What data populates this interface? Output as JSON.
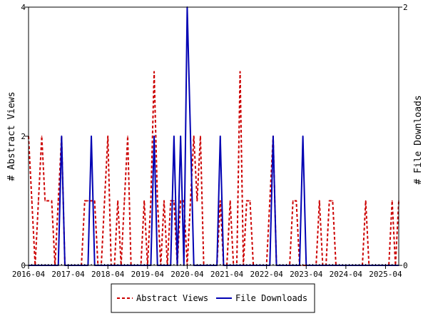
{
  "chart_data": {
    "type": "line",
    "title": "",
    "ylabel_left": "# Abstract Views",
    "ylabel_right": "# File Downloads",
    "x_tick_labels": [
      "2016-04",
      "2017-04",
      "2018-04",
      "2019-04",
      "2020-04",
      "2021-04",
      "2022-04",
      "2023-04",
      "2024-04",
      "2025-04"
    ],
    "x_ticks": [
      "2016-04",
      "2017-04",
      "2018-04",
      "2019-04",
      "2020-04",
      "2021-04",
      "2022-04",
      "2023-04",
      "2024-04",
      "2025-04"
    ],
    "x_range": [
      "2016-04",
      "2025-08"
    ],
    "y_left": {
      "range": [
        0,
        4
      ],
      "ticks": [
        0,
        2,
        4
      ],
      "tick_labels": [
        "0",
        "2",
        "4"
      ]
    },
    "y_right": {
      "range": [
        0,
        2
      ],
      "ticks": [
        0,
        2
      ],
      "tick_labels": [
        "0",
        "2"
      ]
    },
    "legend_position": "bottom",
    "series": [
      {
        "name": "Abstract Views",
        "axis": "left",
        "color": "#cc0000",
        "style": "dashed",
        "points": [
          [
            "2016-04",
            2
          ],
          [
            "2016-05",
            1
          ],
          [
            "2016-06",
            0
          ],
          [
            "2016-07",
            1
          ],
          [
            "2016-08",
            2
          ],
          [
            "2016-09",
            1
          ],
          [
            "2016-10",
            1
          ],
          [
            "2016-11",
            1
          ],
          [
            "2016-12",
            0
          ],
          [
            "2017-01",
            1
          ],
          [
            "2017-02",
            2
          ],
          [
            "2017-03",
            0
          ],
          [
            "2017-04",
            0
          ],
          [
            "2017-05",
            0
          ],
          [
            "2017-06",
            0
          ],
          [
            "2017-07",
            0
          ],
          [
            "2017-08",
            0
          ],
          [
            "2017-09",
            1
          ],
          [
            "2017-10",
            1
          ],
          [
            "2017-11",
            1
          ],
          [
            "2017-12",
            1
          ],
          [
            "2018-01",
            0
          ],
          [
            "2018-02",
            0
          ],
          [
            "2018-03",
            1
          ],
          [
            "2018-04",
            2
          ],
          [
            "2018-05",
            0
          ],
          [
            "2018-06",
            0
          ],
          [
            "2018-07",
            1
          ],
          [
            "2018-08",
            0
          ],
          [
            "2018-09",
            1
          ],
          [
            "2018-10",
            2
          ],
          [
            "2018-11",
            0
          ],
          [
            "2018-12",
            0
          ],
          [
            "2019-01",
            0
          ],
          [
            "2019-02",
            0
          ],
          [
            "2019-03",
            1
          ],
          [
            "2019-04",
            0
          ],
          [
            "2019-05",
            1
          ],
          [
            "2019-06",
            3
          ],
          [
            "2019-07",
            1
          ],
          [
            "2019-08",
            0
          ],
          [
            "2019-09",
            1
          ],
          [
            "2019-10",
            0
          ],
          [
            "2019-11",
            1
          ],
          [
            "2019-12",
            1
          ],
          [
            "2020-01",
            0
          ],
          [
            "2020-02",
            1
          ],
          [
            "2020-03",
            1
          ],
          [
            "2020-04",
            0
          ],
          [
            "2020-05",
            1
          ],
          [
            "2020-06",
            2
          ],
          [
            "2020-07",
            1
          ],
          [
            "2020-08",
            2
          ],
          [
            "2020-09",
            0
          ],
          [
            "2020-10",
            0
          ],
          [
            "2020-11",
            0
          ],
          [
            "2020-12",
            0
          ],
          [
            "2021-01",
            0
          ],
          [
            "2021-02",
            1
          ],
          [
            "2021-03",
            0
          ],
          [
            "2021-04",
            0
          ],
          [
            "2021-05",
            1
          ],
          [
            "2021-06",
            0
          ],
          [
            "2021-07",
            0
          ],
          [
            "2021-08",
            3
          ],
          [
            "2021-09",
            0
          ],
          [
            "2021-10",
            1
          ],
          [
            "2021-11",
            1
          ],
          [
            "2021-12",
            0
          ],
          [
            "2022-01",
            0
          ],
          [
            "2022-02",
            0
          ],
          [
            "2022-03",
            0
          ],
          [
            "2022-04",
            0
          ],
          [
            "2022-05",
            1
          ],
          [
            "2022-06",
            2
          ],
          [
            "2022-07",
            0
          ],
          [
            "2022-08",
            0
          ],
          [
            "2022-09",
            0
          ],
          [
            "2022-10",
            0
          ],
          [
            "2022-11",
            0
          ],
          [
            "2022-12",
            1
          ],
          [
            "2023-01",
            1
          ],
          [
            "2023-02",
            0
          ],
          [
            "2023-03",
            0
          ],
          [
            "2023-04",
            0
          ],
          [
            "2023-05",
            0
          ],
          [
            "2023-06",
            0
          ],
          [
            "2023-07",
            0
          ],
          [
            "2023-08",
            1
          ],
          [
            "2023-09",
            0
          ],
          [
            "2023-10",
            0
          ],
          [
            "2023-11",
            1
          ],
          [
            "2023-12",
            1
          ],
          [
            "2024-01",
            0
          ],
          [
            "2024-02",
            0
          ],
          [
            "2024-03",
            0
          ],
          [
            "2024-04",
            0
          ],
          [
            "2024-05",
            0
          ],
          [
            "2024-06",
            0
          ],
          [
            "2024-07",
            0
          ],
          [
            "2024-08",
            0
          ],
          [
            "2024-09",
            0
          ],
          [
            "2024-10",
            1
          ],
          [
            "2024-11",
            0
          ],
          [
            "2024-12",
            0
          ],
          [
            "2025-01",
            0
          ],
          [
            "2025-02",
            0
          ],
          [
            "2025-03",
            0
          ],
          [
            "2025-04",
            0
          ],
          [
            "2025-05",
            0
          ],
          [
            "2025-06",
            1
          ],
          [
            "2025-07",
            0
          ],
          [
            "2025-08",
            1
          ]
        ]
      },
      {
        "name": "File Downloads",
        "axis": "right",
        "color": "#0000b3",
        "style": "solid",
        "points": [
          [
            "2016-04",
            0
          ],
          [
            "2016-05",
            0
          ],
          [
            "2016-06",
            0
          ],
          [
            "2016-07",
            0
          ],
          [
            "2016-08",
            0
          ],
          [
            "2016-09",
            0
          ],
          [
            "2016-10",
            0
          ],
          [
            "2016-11",
            0
          ],
          [
            "2016-12",
            0
          ],
          [
            "2017-01",
            0
          ],
          [
            "2017-02",
            1
          ],
          [
            "2017-03",
            0
          ],
          [
            "2017-04",
            0
          ],
          [
            "2017-05",
            0
          ],
          [
            "2017-06",
            0
          ],
          [
            "2017-07",
            0
          ],
          [
            "2017-08",
            0
          ],
          [
            "2017-09",
            0
          ],
          [
            "2017-10",
            0
          ],
          [
            "2017-11",
            1
          ],
          [
            "2017-12",
            0
          ],
          [
            "2018-01",
            0
          ],
          [
            "2018-02",
            0
          ],
          [
            "2018-03",
            0
          ],
          [
            "2018-04",
            0
          ],
          [
            "2018-05",
            0
          ],
          [
            "2018-06",
            0
          ],
          [
            "2018-07",
            0
          ],
          [
            "2018-08",
            0
          ],
          [
            "2018-09",
            0
          ],
          [
            "2018-10",
            0
          ],
          [
            "2018-11",
            0
          ],
          [
            "2018-12",
            0
          ],
          [
            "2019-01",
            0
          ],
          [
            "2019-02",
            0
          ],
          [
            "2019-03",
            0
          ],
          [
            "2019-04",
            0
          ],
          [
            "2019-05",
            0
          ],
          [
            "2019-06",
            1
          ],
          [
            "2019-07",
            0
          ],
          [
            "2019-08",
            0
          ],
          [
            "2019-09",
            0
          ],
          [
            "2019-10",
            0
          ],
          [
            "2019-11",
            0
          ],
          [
            "2019-12",
            1
          ],
          [
            "2020-01",
            0
          ],
          [
            "2020-02",
            1
          ],
          [
            "2020-03",
            0
          ],
          [
            "2020-04",
            2
          ],
          [
            "2020-05",
            1
          ],
          [
            "2020-06",
            0
          ],
          [
            "2020-07",
            0
          ],
          [
            "2020-08",
            0
          ],
          [
            "2020-09",
            0
          ],
          [
            "2020-10",
            0
          ],
          [
            "2020-11",
            0
          ],
          [
            "2020-12",
            0
          ],
          [
            "2021-01",
            0
          ],
          [
            "2021-02",
            1
          ],
          [
            "2021-03",
            0
          ],
          [
            "2021-04",
            0
          ],
          [
            "2021-05",
            0
          ],
          [
            "2021-06",
            0
          ],
          [
            "2021-07",
            0
          ],
          [
            "2021-08",
            0
          ],
          [
            "2021-09",
            0
          ],
          [
            "2021-10",
            0
          ],
          [
            "2021-11",
            0
          ],
          [
            "2021-12",
            0
          ],
          [
            "2022-01",
            0
          ],
          [
            "2022-02",
            0
          ],
          [
            "2022-03",
            0
          ],
          [
            "2022-04",
            0
          ],
          [
            "2022-05",
            0
          ],
          [
            "2022-06",
            1
          ],
          [
            "2022-07",
            0
          ],
          [
            "2022-08",
            0
          ],
          [
            "2022-09",
            0
          ],
          [
            "2022-10",
            0
          ],
          [
            "2022-11",
            0
          ],
          [
            "2022-12",
            0
          ],
          [
            "2023-01",
            0
          ],
          [
            "2023-02",
            0
          ],
          [
            "2023-03",
            1
          ],
          [
            "2023-04",
            0
          ],
          [
            "2023-05",
            0
          ],
          [
            "2023-06",
            0
          ],
          [
            "2023-07",
            0
          ],
          [
            "2023-08",
            0
          ],
          [
            "2023-09",
            0
          ],
          [
            "2023-10",
            0
          ],
          [
            "2023-11",
            0
          ],
          [
            "2023-12",
            0
          ],
          [
            "2024-01",
            0
          ],
          [
            "2024-02",
            0
          ],
          [
            "2024-03",
            0
          ],
          [
            "2024-04",
            0
          ],
          [
            "2024-05",
            0
          ],
          [
            "2024-06",
            0
          ],
          [
            "2024-07",
            0
          ],
          [
            "2024-08",
            0
          ],
          [
            "2024-09",
            0
          ],
          [
            "2024-10",
            0
          ],
          [
            "2024-11",
            0
          ],
          [
            "2024-12",
            0
          ],
          [
            "2025-01",
            0
          ],
          [
            "2025-02",
            0
          ],
          [
            "2025-03",
            0
          ],
          [
            "2025-04",
            0
          ],
          [
            "2025-05",
            0
          ],
          [
            "2025-06",
            0
          ],
          [
            "2025-07",
            0
          ],
          [
            "2025-08",
            0
          ]
        ]
      }
    ]
  }
}
